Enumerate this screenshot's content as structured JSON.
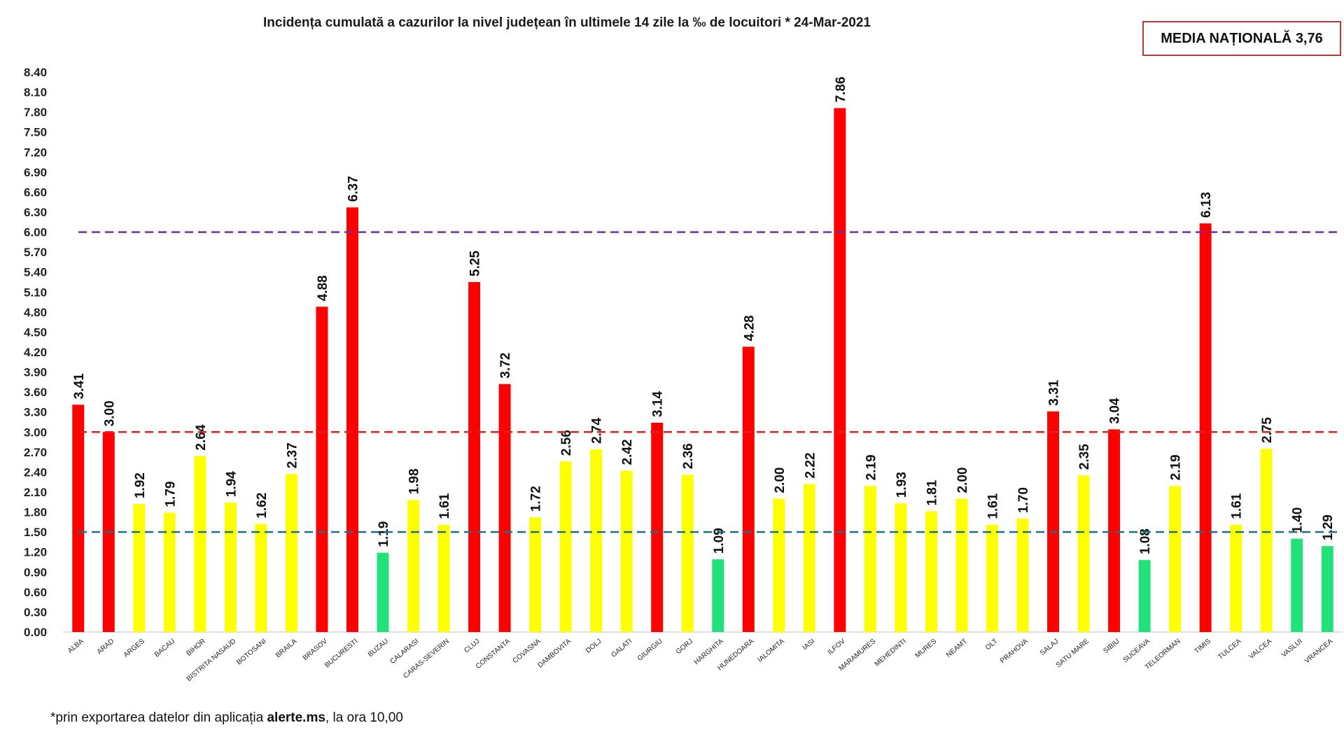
{
  "chart_data": {
    "type": "bar",
    "title": "Incidența cumulată a cazurilor la nivel județean în ultimele 14 zile la ‰ de locuitori *  24-Mar-2021",
    "categories": [
      "ALBA",
      "ARAD",
      "ARGES",
      "BACAU",
      "BIHOR",
      "BISTRITA NASAUD",
      "BOTOSANI",
      "BRAILA",
      "BRASOV",
      "BUCURESTI",
      "BUZAU",
      "CALARASI",
      "CARAS-SEVERIN",
      "CLUJ",
      "CONSTANTA",
      "COVASNA",
      "DAMBOVITA",
      "DOLJ",
      "GALATI",
      "GIURGIU",
      "GORJ",
      "HARGHITA",
      "HUNEDOARA",
      "IALOMITA",
      "IASI",
      "ILFOV",
      "MARAMURES",
      "MEHEDINTI",
      "MURES",
      "NEAMT",
      "OLT",
      "PRAHOVA",
      "SALAJ",
      "SATU MARE",
      "SIBIU",
      "SUCEAVA",
      "TELEORMAN",
      "TIMIS",
      "TULCEA",
      "VALCEA",
      "VASLUI",
      "VRANCEA"
    ],
    "values": [
      3.41,
      3.0,
      1.92,
      1.79,
      2.64,
      1.94,
      1.62,
      2.37,
      4.88,
      6.37,
      1.19,
      1.98,
      1.61,
      5.25,
      3.72,
      1.72,
      2.56,
      2.74,
      2.42,
      3.14,
      2.36,
      1.09,
      4.28,
      2.0,
      2.22,
      7.86,
      2.19,
      1.93,
      1.81,
      2.0,
      1.61,
      1.7,
      3.31,
      2.35,
      3.04,
      1.08,
      2.19,
      6.13,
      1.61,
      2.75,
      1.4,
      1.29
    ],
    "value_labels": [
      "3.41",
      "3.00",
      "1.92",
      "1.79",
      "2.64",
      "1.94",
      "1.62",
      "2.37",
      "4.88",
      "6.37",
      "1.19",
      "1.98",
      "1.61",
      "5.25",
      "3.72",
      "1.72",
      "2.56",
      "2.74",
      "2.42",
      "3.14",
      "2.36",
      "1.09",
      "4.28",
      "2.00",
      "2.22",
      "7.86",
      "2.19",
      "1.93",
      "1.81",
      "2.00",
      "1.61",
      "1.70",
      "3.31",
      "2.35",
      "3.04",
      "1.08",
      "2.19",
      "6.13",
      "1.61",
      "2.75",
      "1.40",
      "1.29"
    ],
    "ylim": [
      0,
      8.4
    ],
    "yticks": [
      "0.00",
      "0.30",
      "0.60",
      "0.90",
      "1.20",
      "1.50",
      "1.80",
      "2.10",
      "2.40",
      "2.70",
      "3.00",
      "3.30",
      "3.60",
      "3.90",
      "4.20",
      "4.50",
      "4.80",
      "5.10",
      "5.40",
      "5.70",
      "6.00",
      "6.30",
      "6.60",
      "6.90",
      "7.20",
      "7.50",
      "7.80",
      "8.10",
      "8.40"
    ],
    "thresholds": [
      {
        "value": 6.0,
        "color": "#7030a0"
      },
      {
        "value": 3.0,
        "color": "#e02020"
      },
      {
        "value": 1.5,
        "color": "#1f6f8b"
      }
    ],
    "colors": {
      "high": "#ff0000",
      "medium": "#ffff00",
      "low": "#22e07a"
    },
    "grid": false,
    "legend": "none"
  },
  "media": {
    "label": "MEDIA NAȚIONALĂ 3,76"
  },
  "footnote": {
    "prefix": "*prin exportarea datelor din aplicația ",
    "app": "alerte.ms",
    "suffix": ", la ora 10,00"
  }
}
